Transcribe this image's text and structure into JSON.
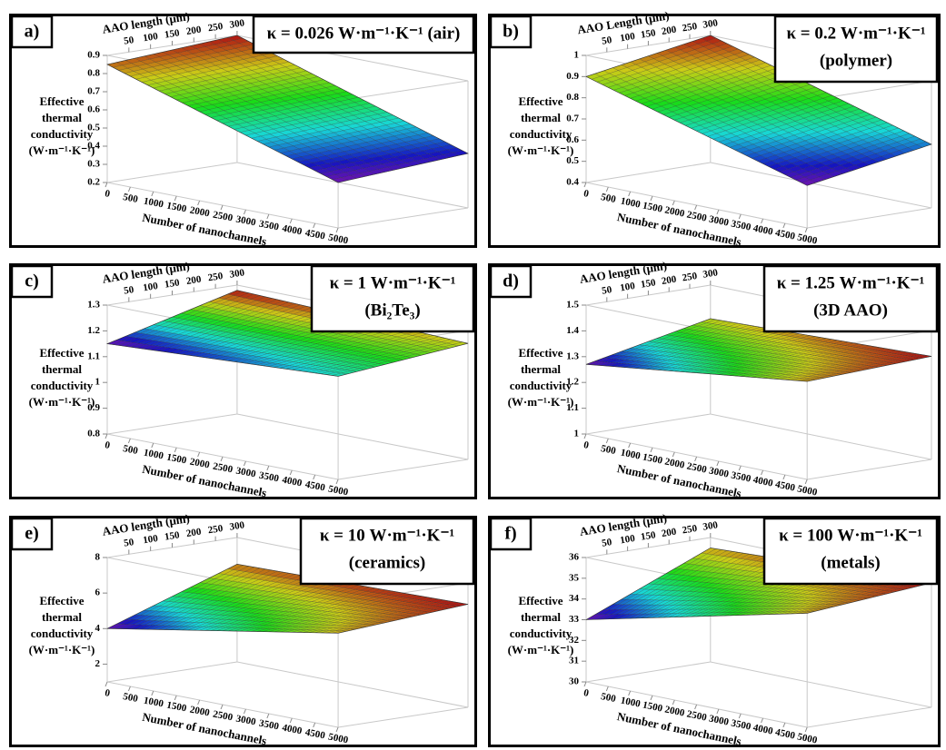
{
  "panels": [
    {
      "label": "a)",
      "title": [
        "κ = 0.026 W·m⁻¹·K⁻¹ (air)"
      ],
      "x_label": "Number of nanochannels",
      "y_label": "AAO length (μm)",
      "z_label": [
        "Effective",
        "thermal",
        "conductivity",
        "(W·m⁻¹·K⁻¹)"
      ],
      "xlim": [
        0,
        5000
      ],
      "xticks": [
        0,
        500,
        1000,
        1500,
        2000,
        2500,
        3000,
        3500,
        4000,
        4500,
        5000
      ],
      "ylim": [
        0,
        300
      ],
      "yticks": [
        50,
        100,
        150,
        200,
        250,
        300
      ],
      "zlim": [
        0.2,
        0.9
      ],
      "zticks": [
        0.2,
        0.3,
        0.4,
        0.5,
        0.6,
        0.7,
        0.8,
        0.9
      ],
      "z_corners": [
        [
          0.85,
          0.9
        ],
        [
          0.45,
          0.5
        ]
      ]
    },
    {
      "label": "b)",
      "title": [
        "κ = 0.2 W·m⁻¹·K⁻¹",
        "(polymer)"
      ],
      "x_label": "Number of nanochannels",
      "y_label": "AAO Length (μm)",
      "z_label": [
        "Effective",
        "thermal",
        "conductivity",
        "(W·m⁻¹·K⁻¹)"
      ],
      "xlim": [
        0,
        5000
      ],
      "xticks": [
        0,
        500,
        1000,
        1500,
        2000,
        2500,
        3000,
        3500,
        4000,
        4500,
        5000
      ],
      "ylim": [
        0,
        300
      ],
      "yticks": [
        50,
        100,
        150,
        200,
        250,
        300
      ],
      "zlim": [
        0.4,
        1
      ],
      "zticks": [
        0.4,
        0.5,
        0.6,
        0.7,
        0.8,
        0.9,
        1
      ],
      "z_corners": [
        [
          0.9,
          1
        ],
        [
          0.6,
          0.7
        ]
      ]
    },
    {
      "label": "c)",
      "title": [
        "κ = 1 W·m⁻¹·K⁻¹",
        "(Bi₂Te₃)"
      ],
      "x_label": "Number of nanochannels",
      "y_label": "AAO length (μm)",
      "z_label": [
        "Effective",
        "thermal",
        "conductivity",
        "(W·m⁻¹·K⁻¹)"
      ],
      "xlim": [
        0,
        5000
      ],
      "xticks": [
        0,
        500,
        1000,
        1500,
        2000,
        2500,
        3000,
        3500,
        4000,
        4500,
        5000
      ],
      "ylim": [
        0,
        300
      ],
      "yticks": [
        50,
        100,
        150,
        200,
        250,
        300
      ],
      "zlim": [
        0.8,
        1.3
      ],
      "zticks": [
        0.8,
        0.9,
        1,
        1.1,
        1.2,
        1.3
      ],
      "z_corners": [
        [
          1.15,
          1.28
        ],
        [
          1.2,
          1.25
        ]
      ]
    },
    {
      "label": "d)",
      "title": [
        "κ = 1.25 W·m⁻¹·K⁻¹",
        "(3D AAO)"
      ],
      "x_label": "Number of nanochannels",
      "y_label": "AAO length (μm)",
      "z_label": [
        "Effective",
        "thermal",
        "conductivity",
        "(W·m⁻¹·K⁻¹)"
      ],
      "xlim": [
        0,
        5000
      ],
      "xticks": [
        0,
        500,
        1000,
        1500,
        2000,
        2500,
        3000,
        3500,
        4000,
        4500,
        5000
      ],
      "ylim": [
        0,
        300
      ],
      "yticks": [
        50,
        100,
        150,
        200,
        250,
        300
      ],
      "zlim": [
        1,
        1.5
      ],
      "zticks": [
        1,
        1.1,
        1.2,
        1.3,
        1.4,
        1.5
      ],
      "z_corners": [
        [
          1.27,
          1.37
        ],
        [
          1.38,
          1.4
        ]
      ]
    },
    {
      "label": "e)",
      "title": [
        "κ = 10 W·m⁻¹·K⁻¹",
        "(ceramics)"
      ],
      "x_label": "Number of nanochannels",
      "y_label": "AAO length (μm)",
      "z_label": [
        "Effective",
        "thermal",
        "conductivity",
        "(W·m⁻¹·K⁻¹)"
      ],
      "xlim": [
        0,
        5000
      ],
      "xticks": [
        0,
        500,
        1000,
        1500,
        2000,
        2500,
        3000,
        3500,
        4000,
        4500,
        5000
      ],
      "ylim": [
        0,
        300
      ],
      "yticks": [
        50,
        100,
        150,
        200,
        250,
        300
      ],
      "zlim": [
        1,
        8
      ],
      "zticks": [
        2,
        4,
        6,
        8
      ],
      "z_corners": [
        [
          4,
          6.5
        ],
        [
          6.3,
          6.8
        ]
      ]
    },
    {
      "label": "f)",
      "title": [
        "κ = 100 W·m⁻¹·K⁻¹",
        "(metals)"
      ],
      "x_label": "Number of nanochannels",
      "y_label": "AAO length (μm)",
      "z_label": [
        "Effective",
        "thermal",
        "conductivity",
        "(W·m⁻¹·K⁻¹)"
      ],
      "xlim": [
        0,
        5000
      ],
      "xticks": [
        0,
        500,
        1000,
        1500,
        2000,
        2500,
        3000,
        3500,
        4000,
        4500,
        5000
      ],
      "ylim": [
        0,
        300
      ],
      "yticks": [
        50,
        100,
        150,
        200,
        250,
        300
      ],
      "zlim": [
        30,
        36
      ],
      "zticks": [
        30,
        31,
        32,
        33,
        34,
        35,
        36
      ],
      "z_corners": [
        [
          33,
          35.5
        ],
        [
          35.5,
          36
        ]
      ]
    }
  ]
}
